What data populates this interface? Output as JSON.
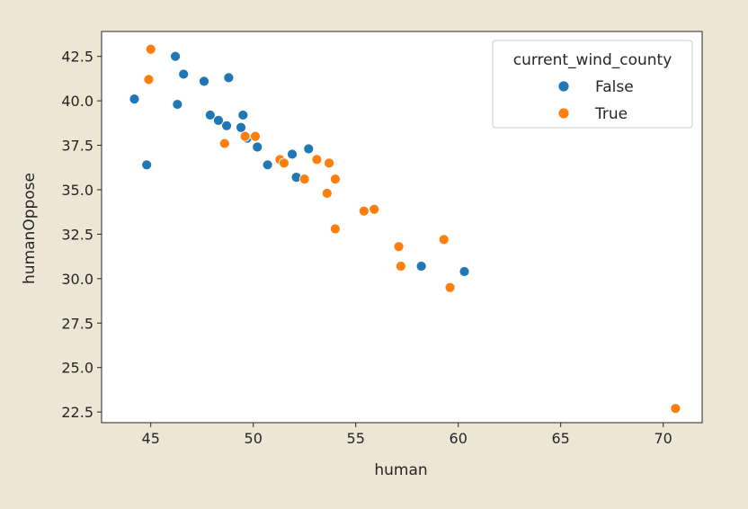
{
  "chart_data": {
    "type": "scatter",
    "xlabel": "human",
    "ylabel": "humanOppose",
    "xlim": [
      42.6,
      71.9
    ],
    "ylim": [
      21.9,
      43.9
    ],
    "xticks": [
      45,
      50,
      55,
      60,
      65,
      70
    ],
    "yticks": [
      22.5,
      25.0,
      27.5,
      30.0,
      32.5,
      35.0,
      37.5,
      40.0,
      42.5
    ],
    "xtick_labels": [
      "45",
      "50",
      "55",
      "60",
      "65",
      "70"
    ],
    "ytick_labels": [
      "22.5",
      "25.0",
      "27.5",
      "30.0",
      "32.5",
      "35.0",
      "37.5",
      "40.0",
      "42.5"
    ],
    "grid": false,
    "legend": {
      "title": "current_wind_county",
      "placement": "top-right"
    },
    "series": [
      {
        "name": "False",
        "color": "#1F77B4",
        "points": [
          [
            44.2,
            40.1
          ],
          [
            44.8,
            36.4
          ],
          [
            46.2,
            42.5
          ],
          [
            46.3,
            39.8
          ],
          [
            46.6,
            41.5
          ],
          [
            47.6,
            41.1
          ],
          [
            47.9,
            39.2
          ],
          [
            48.3,
            38.9
          ],
          [
            48.8,
            41.3
          ],
          [
            48.7,
            38.6
          ],
          [
            49.4,
            38.5
          ],
          [
            49.5,
            39.2
          ],
          [
            49.7,
            37.9
          ],
          [
            50.2,
            37.4
          ],
          [
            50.7,
            36.4
          ],
          [
            51.9,
            37.0
          ],
          [
            52.1,
            35.7
          ],
          [
            52.7,
            37.3
          ],
          [
            58.2,
            30.7
          ],
          [
            60.3,
            30.4
          ]
        ]
      },
      {
        "name": "True",
        "color": "#FF7F0E",
        "points": [
          [
            45.0,
            42.9
          ],
          [
            44.9,
            41.2
          ],
          [
            48.6,
            37.6
          ],
          [
            49.6,
            38.0
          ],
          [
            50.1,
            38.0
          ],
          [
            51.3,
            36.7
          ],
          [
            51.5,
            36.5
          ],
          [
            52.5,
            35.6
          ],
          [
            53.1,
            36.7
          ],
          [
            53.6,
            34.8
          ],
          [
            53.7,
            36.5
          ],
          [
            54.0,
            35.6
          ],
          [
            54.0,
            32.8
          ],
          [
            55.4,
            33.8
          ],
          [
            55.9,
            33.9
          ],
          [
            57.1,
            31.8
          ],
          [
            57.2,
            30.7
          ],
          [
            59.3,
            32.2
          ],
          [
            59.6,
            29.5
          ],
          [
            70.6,
            22.7
          ]
        ]
      }
    ]
  }
}
